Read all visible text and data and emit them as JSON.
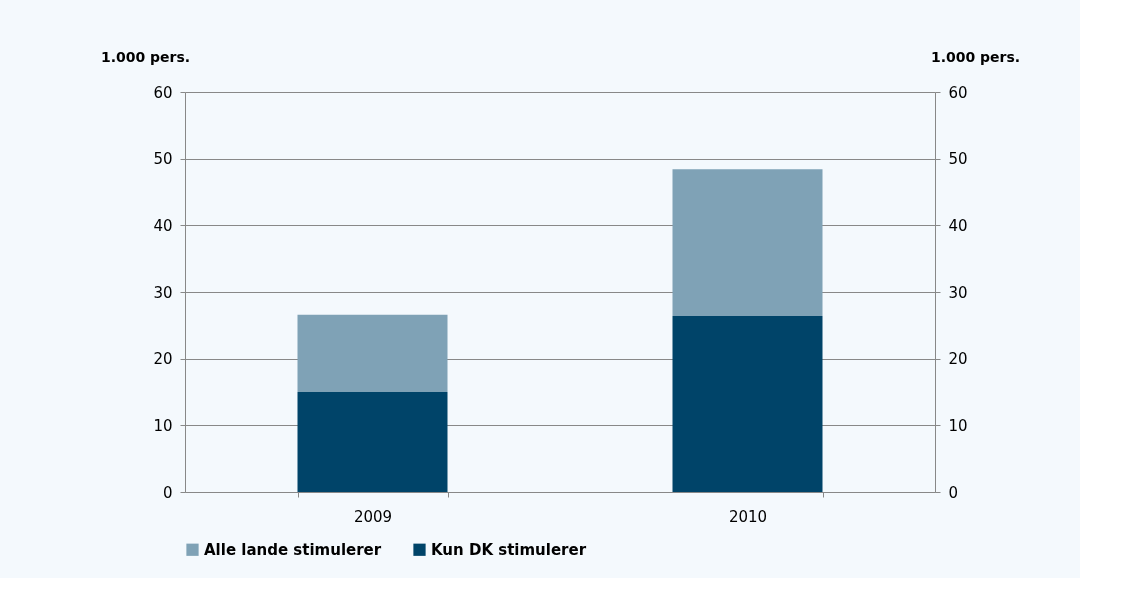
{
  "chart_data": {
    "type": "bar",
    "stacked": true,
    "categories": [
      "2009",
      "2010"
    ],
    "series": [
      {
        "name": "Kun DK stimulerer",
        "color": "#004469",
        "values": [
          15,
          26.4
        ]
      },
      {
        "name": "Alle lande stimulerer",
        "color": "#7fa2b6",
        "values": [
          11.6,
          22.0
        ]
      }
    ],
    "ylabel": "1.000 pers.",
    "y2label": "1.000 pers.",
    "ylim": [
      0,
      60
    ],
    "yticks": [
      0,
      10,
      20,
      30,
      40,
      50,
      60
    ],
    "y2lim": [
      0,
      60
    ],
    "y2ticks": [
      0,
      10,
      20,
      30,
      40,
      50,
      60
    ],
    "grid": "y",
    "legend": "bottom"
  }
}
